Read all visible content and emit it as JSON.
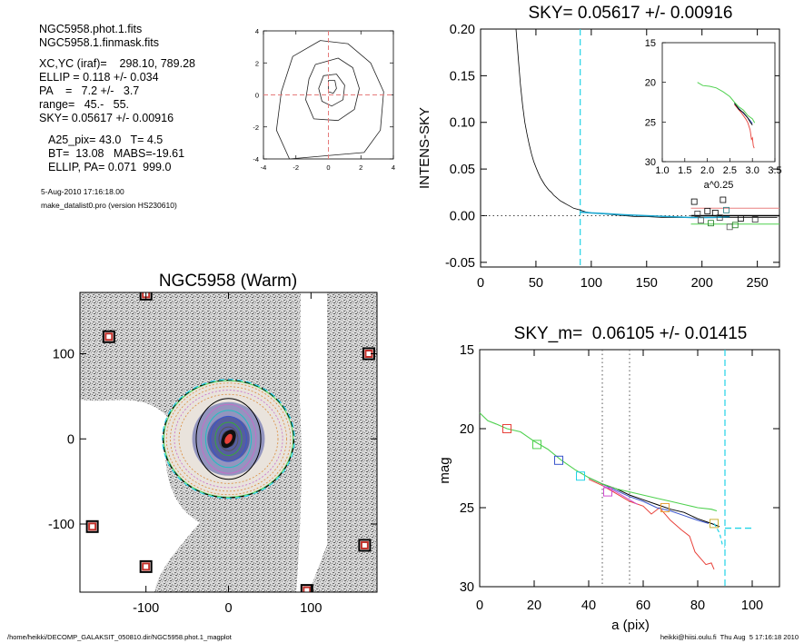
{
  "info": {
    "lines_a": [
      "NGC5958.phot.1.fits",
      "NGC5958.1.finmask.fits"
    ],
    "lines_b": [
      "XC,YC (iraf)=    298.10, 789.28",
      "ELLIP = 0.118 +/- 0.034",
      "PA    =   7.2 +/-   3.7",
      "range=   45.-   55.",
      "SKY= 0.05617 +/- 0.00916"
    ],
    "lines_c": [
      "A25_pix= 43.0   T= 4.5",
      "BT=  13.08   MABS=-19.61",
      "ELLIP, PA= 0.071  999.0"
    ],
    "date": "5-Aug-2010 17:16:18.00",
    "program": "make_datalist0.pro (version HS230610)"
  },
  "footer": {
    "path": "/home/heikki/DECOMP_GALAKSIT_050810.dir/NGC5958.phot.1_magplot",
    "user": "heikki@hiisi.oulu.fi  Thu Aug  5 17:16:18 2010"
  },
  "colors": {
    "sky_line": "#22d3e6",
    "red": "#e8413a",
    "green": "#4fd14f",
    "blue": "#3a55cc",
    "dotted": "#555555"
  },
  "chart_data": [
    {
      "id": "contour",
      "type": "contour",
      "title": "",
      "xlim": [
        -4,
        4
      ],
      "ylim": [
        -4,
        4
      ],
      "xticks": [
        -4,
        -2,
        0,
        2,
        4
      ],
      "yticks": [
        -4,
        -2,
        0,
        2,
        4
      ],
      "center_cross": [
        0,
        0
      ],
      "contours": [
        [
          [
            -2.2,
            2.4
          ],
          [
            -0.5,
            3.4
          ],
          [
            1.2,
            3.2
          ],
          [
            2.6,
            2.0
          ],
          [
            3.4,
            0.2
          ],
          [
            3.2,
            -2.2
          ],
          [
            2.2,
            -3.6
          ],
          [
            -2.4,
            -4.0
          ],
          [
            -3.2,
            -2.2
          ],
          [
            -2.9,
            0.2
          ]
        ],
        [
          [
            -0.8,
            1.9
          ],
          [
            0.6,
            2.3
          ],
          [
            1.5,
            1.7
          ],
          [
            1.9,
            0.4
          ],
          [
            1.6,
            -0.9
          ],
          [
            0.6,
            -1.6
          ],
          [
            -0.9,
            -1.5
          ],
          [
            -1.4,
            -0.3
          ],
          [
            -1.2,
            1.0
          ]
        ],
        [
          [
            -0.3,
            1.2
          ],
          [
            0.5,
            1.3
          ],
          [
            1.0,
            0.6
          ],
          [
            0.9,
            -0.3
          ],
          [
            0.2,
            -0.7
          ],
          [
            -0.4,
            -0.4
          ],
          [
            -0.6,
            0.4
          ]
        ],
        [
          [
            0.0,
            0.9
          ],
          [
            0.4,
            0.9
          ],
          [
            0.5,
            0.4
          ],
          [
            0.3,
            0.1
          ],
          [
            0.0,
            0.2
          ]
        ]
      ]
    },
    {
      "id": "profile",
      "type": "line",
      "title": "SKY= 0.05617 +/- 0.00916",
      "xlabel": "",
      "ylabel": "INTENS-SKY",
      "xlim": [
        0,
        270
      ],
      "ylim": [
        -0.055,
        0.2
      ],
      "xticks": [
        0,
        50,
        100,
        150,
        200,
        250
      ],
      "yticks": [
        -0.05,
        0.0,
        0.05,
        0.1,
        0.15,
        0.2
      ],
      "ytick_labels": [
        "-0.05",
        "0.00",
        "0.05",
        "0.10",
        "0.15",
        "0.20"
      ],
      "zero_line": 0,
      "sky_radius": 90,
      "profile": [
        [
          32,
          0.2
        ],
        [
          34,
          0.17
        ],
        [
          36,
          0.14
        ],
        [
          38,
          0.118
        ],
        [
          40,
          0.1
        ],
        [
          42,
          0.087
        ],
        [
          44,
          0.076
        ],
        [
          46,
          0.066
        ],
        [
          48,
          0.058
        ],
        [
          50,
          0.052
        ],
        [
          52,
          0.046
        ],
        [
          54,
          0.041
        ],
        [
          56,
          0.037
        ],
        [
          58,
          0.033
        ],
        [
          60,
          0.03
        ],
        [
          62,
          0.027
        ],
        [
          64,
          0.025
        ],
        [
          66,
          0.022
        ],
        [
          68,
          0.02
        ],
        [
          70,
          0.018
        ],
        [
          72,
          0.016
        ],
        [
          75,
          0.014
        ],
        [
          78,
          0.012
        ],
        [
          81,
          0.01
        ],
        [
          84,
          0.008
        ],
        [
          87,
          0.007
        ],
        [
          90,
          0.006
        ],
        [
          95,
          0.004
        ],
        [
          100,
          0.003
        ],
        [
          110,
          0.002
        ],
        [
          120,
          0.001
        ],
        [
          130,
          0.0
        ],
        [
          140,
          -0.001
        ],
        [
          150,
          -0.001
        ],
        [
          165,
          -0.002
        ],
        [
          180,
          -0.002
        ],
        [
          200,
          -0.002
        ],
        [
          220,
          -0.002
        ],
        [
          240,
          -0.002
        ],
        [
          268,
          -0.002
        ]
      ],
      "sky_segment": [
        [
          90,
          0.004
        ],
        [
          100,
          0.003
        ],
        [
          115,
          0.002
        ],
        [
          130,
          0.001
        ],
        [
          150,
          0.0
        ],
        [
          170,
          -0.001
        ],
        [
          190,
          -0.002
        ],
        [
          210,
          -0.002
        ],
        [
          225,
          -0.001
        ]
      ],
      "sky_points": [
        [
          193,
          0.015
        ],
        [
          196,
          0.002
        ],
        [
          199,
          -0.005
        ],
        [
          205,
          0.005
        ],
        [
          208,
          -0.008
        ],
        [
          212,
          0.003
        ],
        [
          216,
          -0.002
        ],
        [
          219,
          0.017
        ],
        [
          222,
          0.006
        ],
        [
          225,
          -0.012
        ],
        [
          230,
          -0.01
        ],
        [
          235,
          -0.003
        ],
        [
          248,
          -0.004
        ]
      ],
      "sky_point_colors": [
        "#000000",
        "#333333",
        "#555555",
        "#000000",
        "#1a7a1a",
        "#000000",
        "#444444",
        "#000000",
        "#1a7a80",
        "#555555",
        "#1a7a1a",
        "#000000",
        "#333333"
      ],
      "mean_line": 0.0,
      "red_line": 0.008,
      "green_line": -0.009,
      "inset": {
        "xlabel": "a^0.25",
        "xlim": [
          1.0,
          3.5
        ],
        "ylim": [
          15,
          30
        ],
        "xticks": [
          1.0,
          1.5,
          2.0,
          2.5,
          3.0,
          3.5
        ],
        "xtick_labels": [
          "1.0",
          "1.5",
          "2.0",
          "2.5",
          "3.0",
          "3.5"
        ],
        "yticks": [
          15,
          20,
          25,
          30
        ],
        "green": [
          [
            1.78,
            20.0
          ],
          [
            1.9,
            20.4
          ],
          [
            2.05,
            20.5
          ],
          [
            2.2,
            20.7
          ],
          [
            2.35,
            21.2
          ],
          [
            2.5,
            21.8
          ],
          [
            2.6,
            22.5
          ],
          [
            2.7,
            23.1
          ],
          [
            2.8,
            23.5
          ],
          [
            2.9,
            24.2
          ],
          [
            3.0,
            24.6
          ],
          [
            3.05,
            25.1
          ]
        ],
        "black": [
          [
            2.6,
            22.6
          ],
          [
            2.7,
            23.4
          ],
          [
            2.8,
            23.8
          ],
          [
            2.9,
            24.5
          ],
          [
            2.95,
            25.0
          ],
          [
            3.0,
            25.4
          ]
        ],
        "blue": [
          [
            2.6,
            22.7
          ],
          [
            2.75,
            23.6
          ],
          [
            2.85,
            24.2
          ],
          [
            2.95,
            24.8
          ],
          [
            3.0,
            25.2
          ]
        ],
        "red": [
          [
            2.6,
            22.8
          ],
          [
            2.75,
            23.8
          ],
          [
            2.85,
            24.6
          ],
          [
            2.9,
            25.1
          ],
          [
            2.95,
            26.0
          ],
          [
            2.98,
            27.2
          ],
          [
            3.0,
            27.0
          ],
          [
            3.02,
            28.0
          ],
          [
            3.04,
            28.3
          ]
        ]
      }
    },
    {
      "id": "image",
      "type": "image",
      "title": "NGC5958 (Warm)",
      "xlim": [
        -180,
        180
      ],
      "ylim": [
        -180,
        172
      ],
      "xticks": [
        -100,
        0,
        100
      ],
      "yticks": [
        -100,
        0,
        100
      ],
      "center": [
        0,
        0
      ],
      "ellipse_a": 80,
      "ellipse_b": 72,
      "masked_stars": [
        [
          -100,
          170
        ],
        [
          -145,
          120
        ],
        [
          170,
          100
        ],
        [
          -165,
          -103
        ],
        [
          165,
          -125
        ],
        [
          -100,
          -150
        ],
        [
          95,
          -178
        ]
      ]
    },
    {
      "id": "mag",
      "type": "line",
      "title": "SKY_m=  0.06105 +/- 0.01415",
      "xlabel": "a (pix)",
      "ylabel": "mag",
      "xlim": [
        0,
        110
      ],
      "ylim": [
        30,
        15
      ],
      "xticks": [
        0,
        20,
        40,
        60,
        80,
        100
      ],
      "yticks": [
        15,
        20,
        25,
        30
      ],
      "range_lines": [
        45,
        55
      ],
      "sky_radius": 90,
      "green": [
        [
          0,
          19.0
        ],
        [
          3,
          19.5
        ],
        [
          6,
          19.7
        ],
        [
          10,
          20.0
        ],
        [
          15,
          20.2
        ],
        [
          20,
          20.8
        ],
        [
          25,
          21.3
        ],
        [
          30,
          22.0
        ],
        [
          35,
          22.6
        ],
        [
          40,
          23.1
        ],
        [
          45,
          23.5
        ],
        [
          50,
          23.8
        ],
        [
          55,
          24.0
        ],
        [
          60,
          24.2
        ],
        [
          65,
          24.4
        ],
        [
          70,
          24.6
        ],
        [
          75,
          24.8
        ],
        [
          80,
          25.0
        ],
        [
          85,
          25.1
        ],
        [
          87,
          25.2
        ]
      ],
      "black": [
        [
          40,
          23.1
        ],
        [
          45,
          23.5
        ],
        [
          50,
          23.8
        ],
        [
          55,
          24.2
        ],
        [
          60,
          24.5
        ],
        [
          65,
          24.8
        ],
        [
          70,
          25.1
        ],
        [
          75,
          25.3
        ],
        [
          80,
          25.7
        ],
        [
          85,
          26.0
        ],
        [
          88,
          26.2
        ]
      ],
      "blue": [
        [
          40,
          23.1
        ],
        [
          45,
          23.5
        ],
        [
          50,
          23.9
        ],
        [
          55,
          24.3
        ],
        [
          60,
          24.6
        ],
        [
          65,
          25.0
        ],
        [
          70,
          25.2
        ],
        [
          75,
          25.5
        ],
        [
          80,
          25.8
        ],
        [
          84,
          26.0
        ]
      ],
      "magenta": [
        [
          45,
          23.6
        ],
        [
          50,
          24.0
        ],
        [
          55,
          24.5
        ],
        [
          58,
          24.8
        ]
      ],
      "red": [
        [
          40,
          23.2
        ],
        [
          45,
          23.6
        ],
        [
          50,
          24.1
        ],
        [
          55,
          24.6
        ],
        [
          60,
          24.9
        ],
        [
          63,
          25.4
        ],
        [
          66,
          25.0
        ],
        [
          70,
          25.8
        ],
        [
          74,
          26.4
        ],
        [
          77,
          26.8
        ],
        [
          79,
          27.8
        ],
        [
          81,
          28.2
        ],
        [
          83,
          28.6
        ],
        [
          85,
          28.5
        ],
        [
          86,
          28.9
        ]
      ],
      "cyan_curve": [
        [
          86,
          26.0
        ],
        [
          88,
          26.6
        ],
        [
          89,
          27.3
        ],
        [
          90,
          27.5
        ]
      ],
      "cyan_flat": [
        [
          90,
          26.3
        ],
        [
          100,
          26.3
        ]
      ],
      "markers": [
        {
          "x": 10,
          "y": 20.0,
          "color": "#e8413a"
        },
        {
          "x": 21,
          "y": 21.0,
          "color": "#4fd14f"
        },
        {
          "x": 29,
          "y": 22.0,
          "color": "#3a55cc"
        },
        {
          "x": 37,
          "y": 23.0,
          "color": "#22d3e6"
        },
        {
          "x": 47,
          "y": 24.0,
          "color": "#d04dd0"
        },
        {
          "x": 68,
          "y": 25.0,
          "color": "#e8a13a"
        },
        {
          "x": 86,
          "y": 26.0,
          "color": "#c9b23a"
        }
      ]
    }
  ]
}
